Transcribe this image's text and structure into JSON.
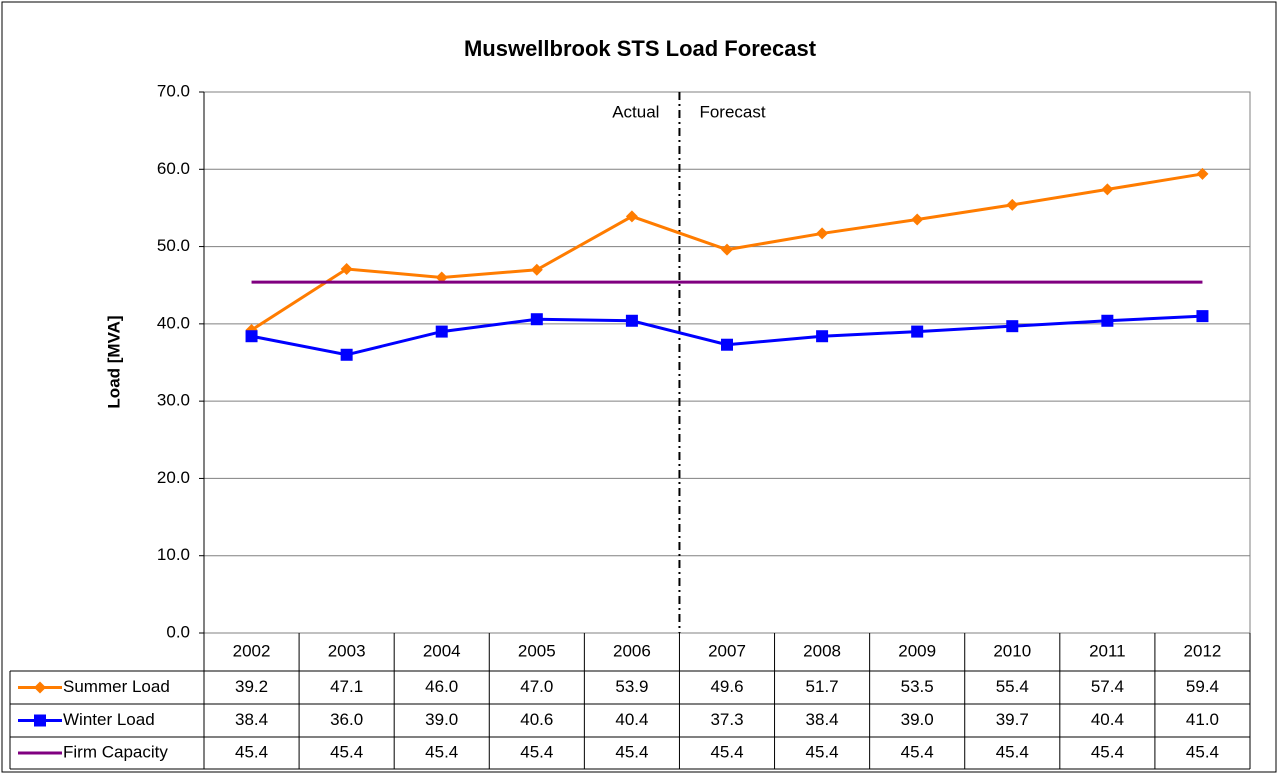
{
  "chart_data": {
    "type": "line",
    "title": "Muswellbrook STS Load Forecast",
    "ylabel": "Load [MVA]",
    "annotations": [
      "Actual",
      "Forecast"
    ],
    "categories": [
      "2002",
      "2003",
      "2004",
      "2005",
      "2006",
      "2007",
      "2008",
      "2009",
      "2010",
      "2011",
      "2012"
    ],
    "series": [
      {
        "name": "Summer Load",
        "color": "#ff7c00",
        "marker": "diamond",
        "values": [
          39.2,
          47.1,
          46.0,
          47.0,
          53.9,
          49.6,
          51.7,
          53.5,
          55.4,
          57.4,
          59.4
        ],
        "value_labels": [
          "39.2",
          "47.1",
          "46.0",
          "47.0",
          "53.9",
          "49.6",
          "51.7",
          "53.5",
          "55.4",
          "57.4",
          "59.4"
        ]
      },
      {
        "name": "Winter Load",
        "color": "#0000ff",
        "marker": "square",
        "values": [
          38.4,
          36.0,
          39.0,
          40.6,
          40.4,
          37.3,
          38.4,
          39.0,
          39.7,
          40.4,
          41.0
        ],
        "value_labels": [
          "38.4",
          "36.0",
          "39.0",
          "40.6",
          "40.4",
          "37.3",
          "38.4",
          "39.0",
          "39.7",
          "40.4",
          "41.0"
        ]
      },
      {
        "name": "Firm Capacity",
        "color": "#800080",
        "marker": "none",
        "values": [
          45.4,
          45.4,
          45.4,
          45.4,
          45.4,
          45.4,
          45.4,
          45.4,
          45.4,
          45.4,
          45.4
        ],
        "value_labels": [
          "45.4",
          "45.4",
          "45.4",
          "45.4",
          "45.4",
          "45.4",
          "45.4",
          "45.4",
          "45.4",
          "45.4",
          "45.4"
        ]
      }
    ],
    "ylim": [
      0,
      70
    ],
    "yticks": [
      {
        "value": 0,
        "label": "0.0"
      },
      {
        "value": 10,
        "label": "10.0"
      },
      {
        "value": 20,
        "label": "20.0"
      },
      {
        "value": 30,
        "label": "30.0"
      },
      {
        "value": 40,
        "label": "40.0"
      },
      {
        "value": 50,
        "label": "50.0"
      },
      {
        "value": 60,
        "label": "60.0"
      },
      {
        "value": 70,
        "label": "70.0"
      }
    ],
    "grid": true
  }
}
